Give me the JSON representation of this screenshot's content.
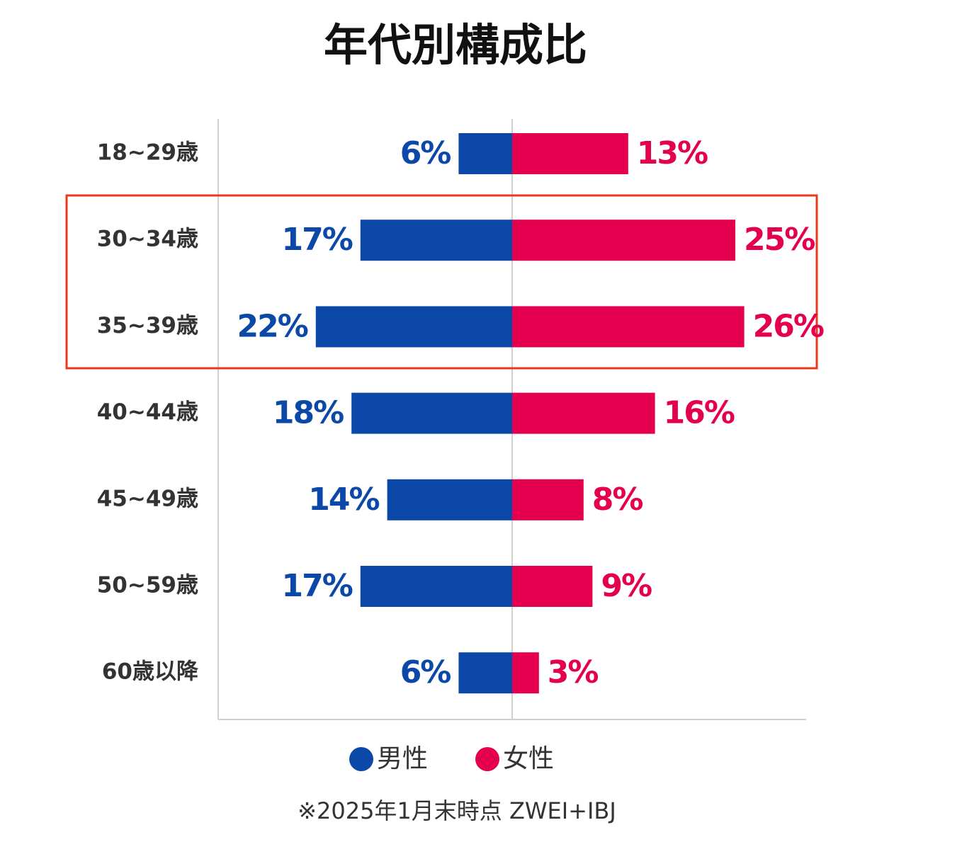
{
  "chart_data": {
    "type": "diverging-bar",
    "title": "年代別構成比",
    "categories": [
      "18~29歳",
      "30~34歳",
      "35~39歳",
      "40~44歳",
      "45~49歳",
      "50~59歳",
      "60歳以降"
    ],
    "series": [
      {
        "name": "男性",
        "color": "#0b48a8",
        "values": [
          6,
          17,
          22,
          18,
          14,
          17,
          6
        ],
        "value_labels": [
          "6%",
          "17%",
          "22%",
          "18%",
          "14%",
          "17%",
          "6%"
        ]
      },
      {
        "name": "女性",
        "color": "#e4004e",
        "values": [
          13,
          25,
          26,
          16,
          8,
          9,
          3
        ],
        "value_labels": [
          "13%",
          "25%",
          "26%",
          "16%",
          "8%",
          "9%",
          "3%"
        ]
      }
    ],
    "note": "※2025年1月末時点 ZWEI+IBJ"
  }
}
